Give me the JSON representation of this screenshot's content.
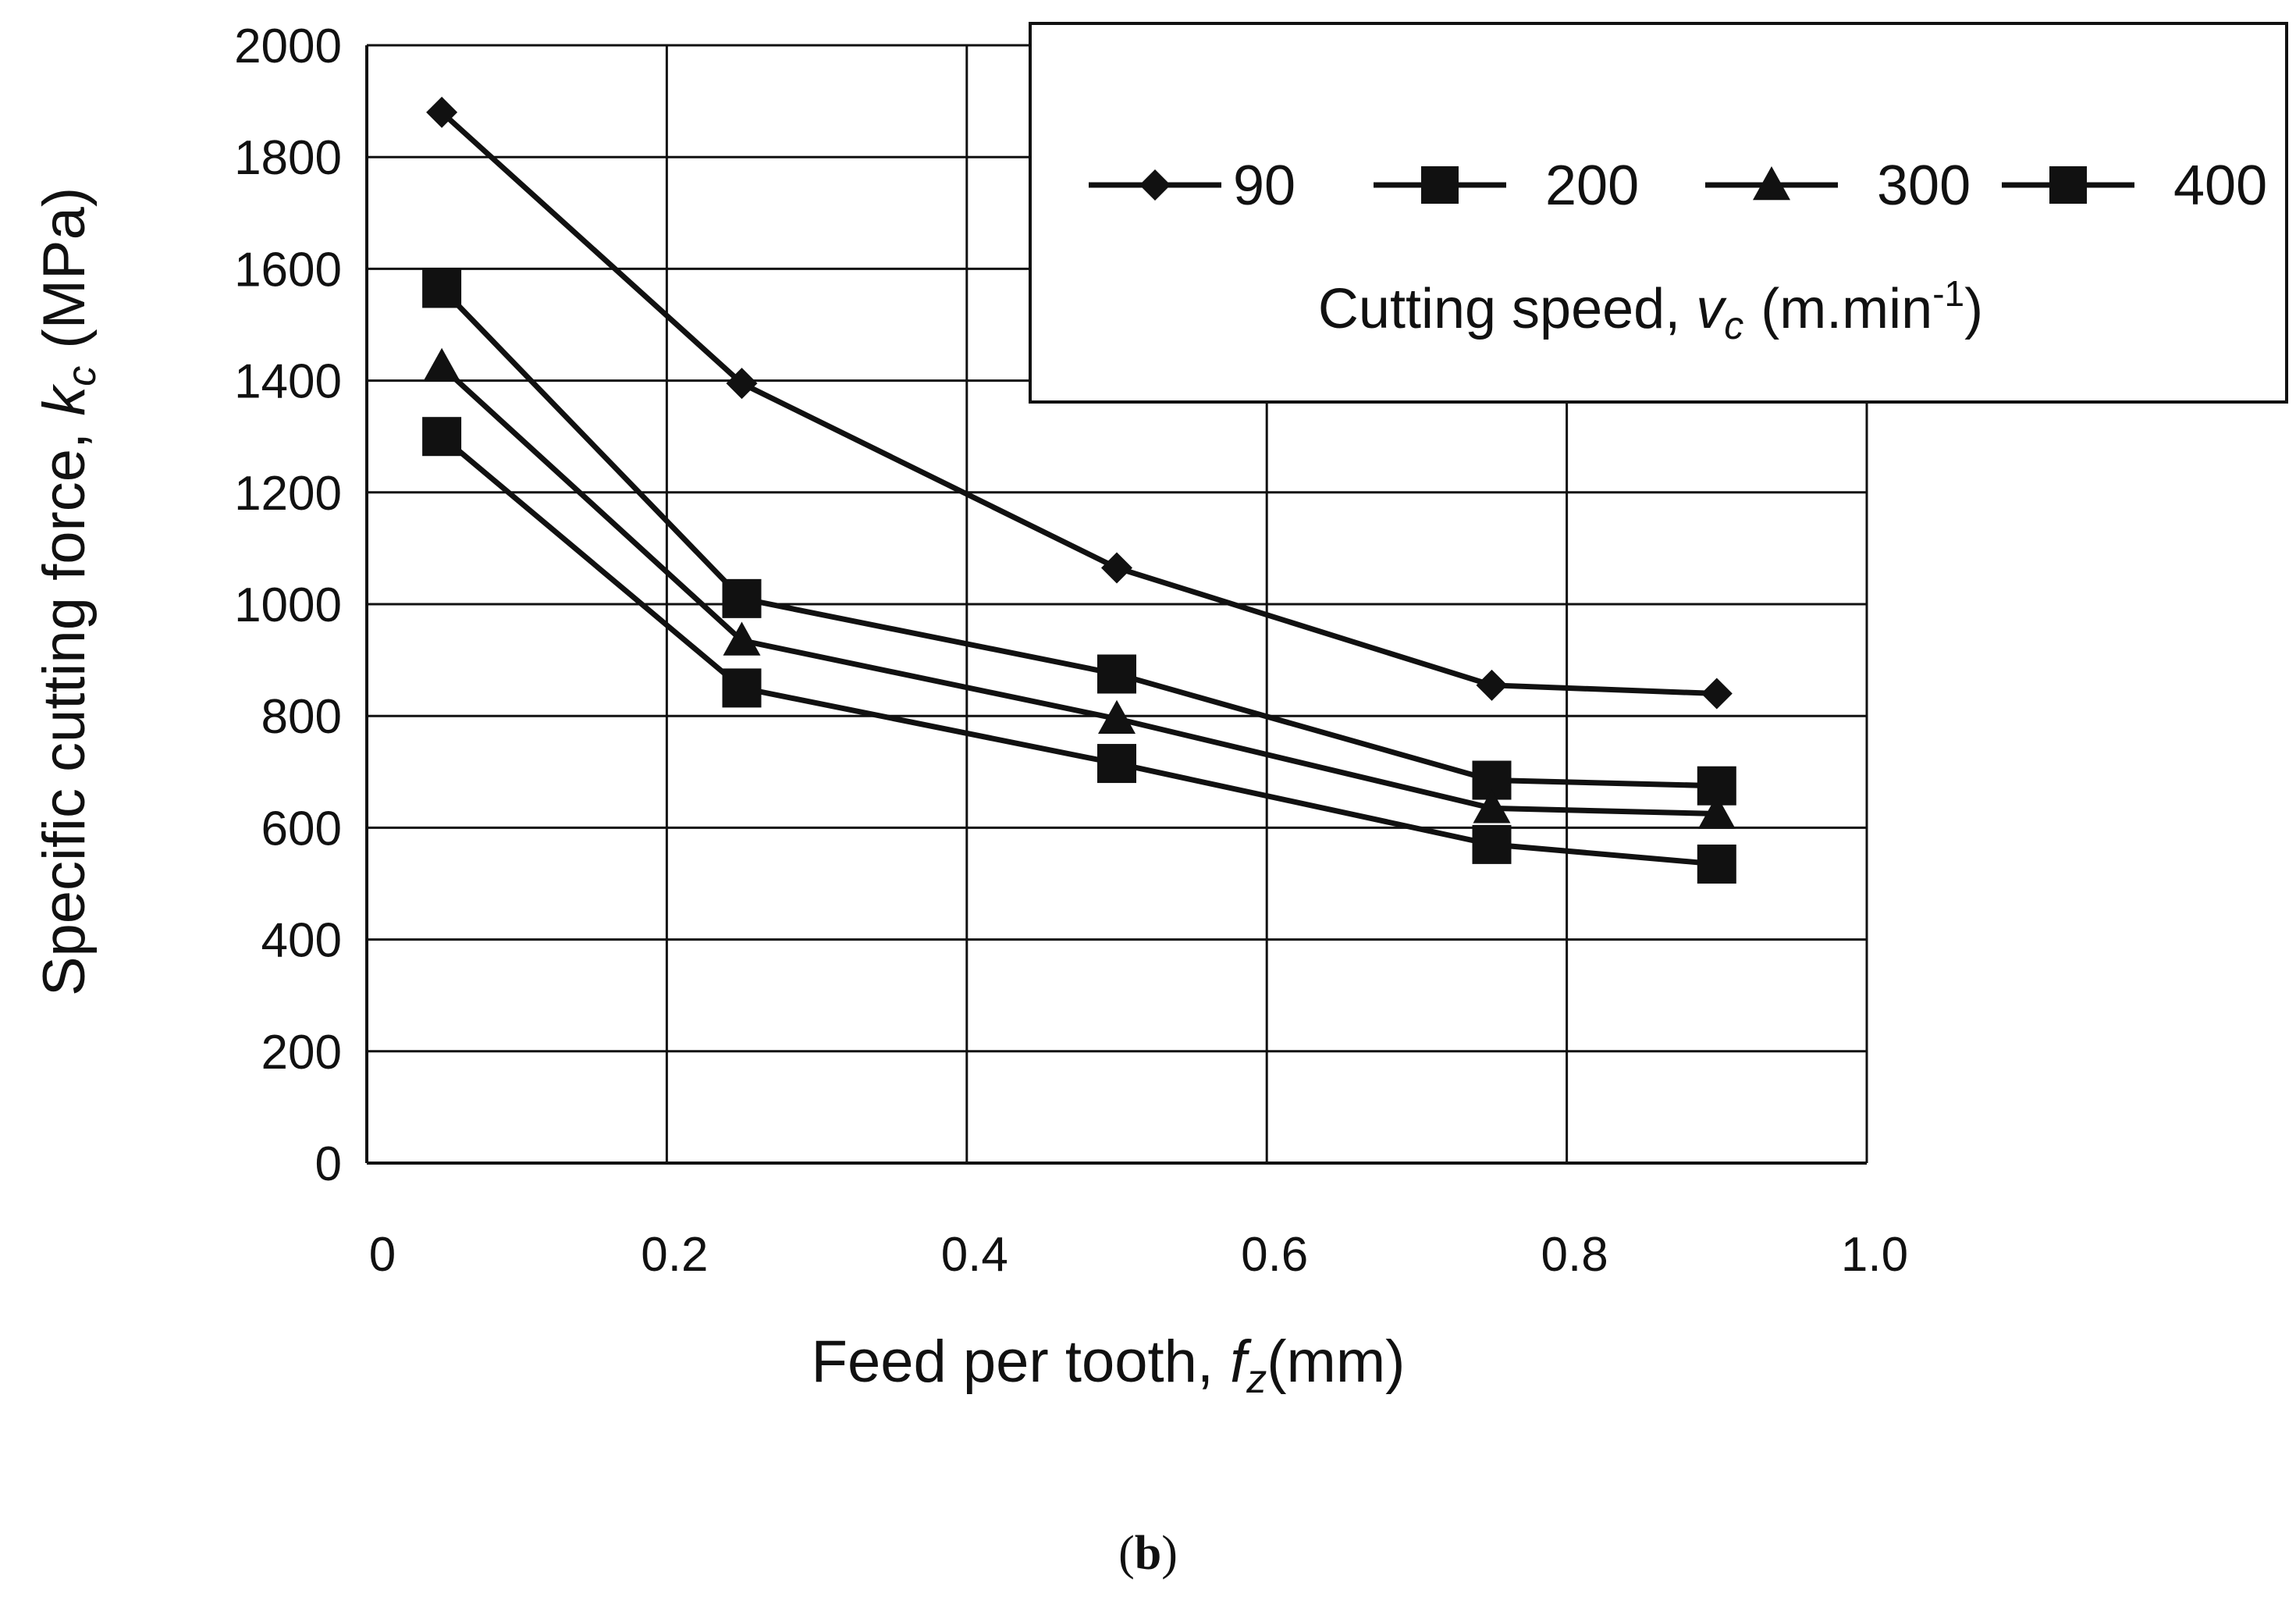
{
  "chart_data": {
    "type": "line",
    "title": "",
    "xlabel_prefix": "Feed per tooth, ",
    "xlabel_symbol": "f",
    "xlabel_sub": "z",
    "xlabel_unit": "(mm)",
    "ylabel_prefix": "Specific cutting force, ",
    "ylabel_symbol": "k",
    "ylabel_sub": "c",
    "ylabel_unit": "(MPa)",
    "xlim": [
      0,
      1.0
    ],
    "ylim": [
      0,
      2000
    ],
    "xticks": [
      "0",
      "0.2",
      "0.4",
      "0.6",
      "0.8",
      "1.0"
    ],
    "yticks": [
      "0",
      "200",
      "400",
      "600",
      "800",
      "1000",
      "1200",
      "1400",
      "1600",
      "1800",
      "2000"
    ],
    "grid": true,
    "x": [
      0.05,
      0.25,
      0.5,
      0.75,
      0.9
    ],
    "series": [
      {
        "name": "90",
        "marker": "diamond",
        "values": [
          1880,
          1395,
          1065,
          855,
          840
        ]
      },
      {
        "name": "200",
        "marker": "square",
        "values": [
          1565,
          1010,
          875,
          685,
          675
        ]
      },
      {
        "name": "300",
        "marker": "triangle",
        "values": [
          1425,
          935,
          795,
          635,
          625
        ]
      },
      {
        "name": "400",
        "marker": "square",
        "values": [
          1300,
          850,
          715,
          570,
          535
        ]
      }
    ],
    "legend": {
      "position": "top-right",
      "title_prefix": "Cutting speed, ",
      "title_symbol": "v",
      "title_sub": "c",
      "title_unit_base": "(m.min",
      "title_unit_sup": "-1",
      "title_unit_end": ")"
    }
  },
  "caption": {
    "letter": "b",
    "open": "(",
    "close": ")"
  }
}
